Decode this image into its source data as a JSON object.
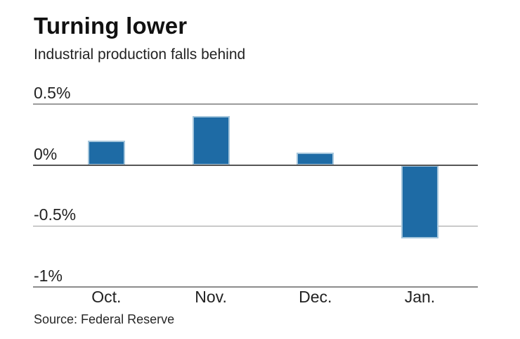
{
  "header": {
    "title": "Turning lower",
    "subtitle": "Industrial production falls behind"
  },
  "footer": {
    "source": "Source: Federal Reserve"
  },
  "chart_data": {
    "type": "bar",
    "title": "Turning lower",
    "subtitle": "Industrial production falls behind",
    "source": "Source: Federal Reserve",
    "categories": [
      "Oct.",
      "Nov.",
      "Dec.",
      "Jan."
    ],
    "values": [
      0.2,
      0.4,
      0.1,
      -0.6
    ],
    "xlabel": "",
    "ylabel": "",
    "ylim": [
      -1,
      0.5
    ],
    "yticks": [
      {
        "value": 0.5,
        "label": "0.5%"
      },
      {
        "value": 0,
        "label": "0%"
      },
      {
        "value": -0.5,
        "label": "-0.5%"
      },
      {
        "value": -1,
        "label": "-1%"
      }
    ],
    "grid": "horizontal",
    "legend": "none",
    "colors": {
      "bar_fill": "#1e6ba5",
      "bar_edge": "#a5c6dc",
      "gridline": "#9c9c9c",
      "zero_line": "#565656",
      "bottom_line": "#8c8c8c",
      "text": "#222222"
    }
  }
}
